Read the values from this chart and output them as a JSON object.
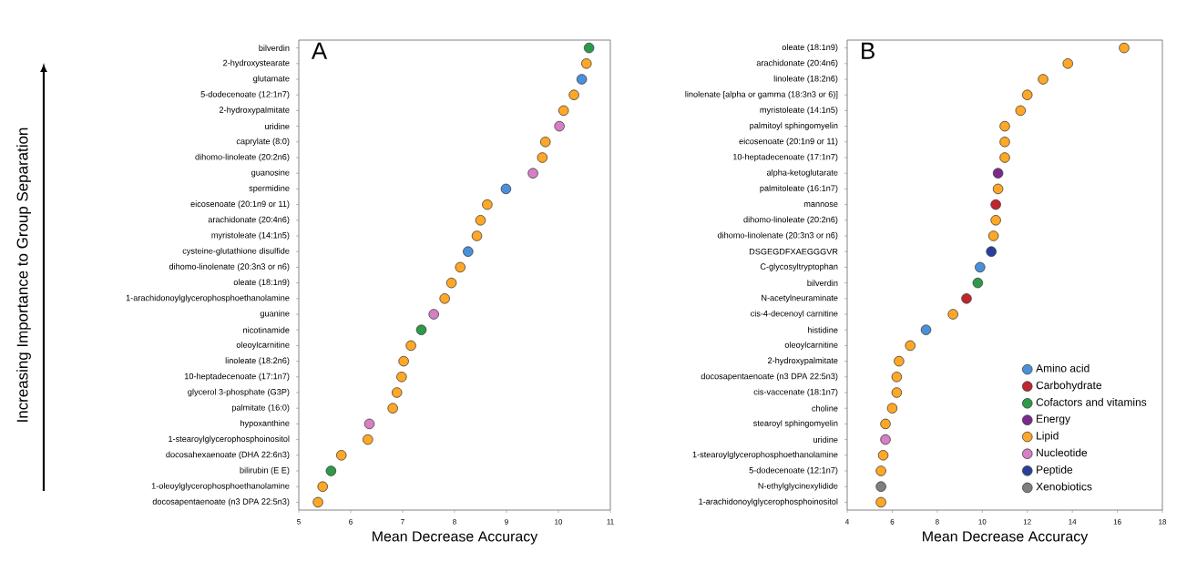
{
  "chart_data": [
    {
      "type": "scatter",
      "orientation": "horizontal",
      "title": "A",
      "xlabel": "Mean Decrease Accuracy",
      "ylabel": "Increasing Importance to Group Separation",
      "marker": "circle",
      "categories": [
        "bilverdin",
        "2-hydroxystearate",
        "glutamate",
        "5-dodecenoate (12:1n7)",
        "2-hydroxypalmitate",
        "uridine",
        "caprylate (8:0)",
        "dihomo-linoleate (20:2n6)",
        "guanosine",
        "spermidine",
        "eicosenoate (20:1n9 or 11)",
        "arachidonate (20:4n6)",
        "myristoleate (14:1n5)",
        "cysteine-glutathione disulfide",
        "dihomo-linolenate (20:3n3 or n6)",
        "oleate (18:1n9)",
        "1-arachidonoylglycerophosphoethanolamine",
        "guanine",
        "nicotinamide",
        "oleoylcarnitine",
        "linoleate (18:2n6)",
        "10-heptadecenoate (17:1n7)",
        "glycerol 3-phosphate (G3P)",
        "palmitate (16:0)",
        "hypoxanthine",
        "1-stearoylglycerophosphoinositol",
        "docosahexaenoate (DHA 22:6n3)",
        "bilirubin (E E)",
        "1-oleoylglycerophosphoethanolamine",
        "docosapentaenoate (n3 DPA 22:5n3)"
      ],
      "values": [
        10.59,
        10.54,
        10.45,
        10.3,
        10.1,
        10.02,
        9.75,
        9.69,
        9.51,
        8.99,
        8.63,
        8.5,
        8.43,
        8.26,
        8.11,
        7.94,
        7.81,
        7.6,
        7.36,
        7.16,
        7.02,
        6.98,
        6.89,
        6.81,
        6.36,
        6.33,
        5.82,
        5.62,
        5.46,
        5.37
      ],
      "colors": [
        "#2e9a48",
        "#ffa726",
        "#4a90d9",
        "#ffa726",
        "#ffa726",
        "#d67fc4",
        "#ffa726",
        "#ffa726",
        "#d67fc4",
        "#4a90d9",
        "#ffa726",
        "#ffa726",
        "#ffa726",
        "#4a90d9",
        "#ffa726",
        "#ffa726",
        "#ffa726",
        "#d67fc4",
        "#2e9a48",
        "#ffa726",
        "#ffa726",
        "#ffa726",
        "#ffa726",
        "#ffa726",
        "#d67fc4",
        "#ffa726",
        "#ffa726",
        "#2e9a48",
        "#ffa726",
        "#ffa726"
      ],
      "xlim": [
        5,
        11
      ],
      "xticks": [
        5,
        6,
        7,
        8,
        9,
        10,
        11
      ]
    },
    {
      "type": "scatter",
      "orientation": "horizontal",
      "title": "B",
      "xlabel": "Mean Decrease Accuracy",
      "marker": "circle",
      "legend": "bottom right",
      "categories": [
        "oleate (18:1n9)",
        "arachidonate (20:4n6)",
        "linoleate (18:2n6)",
        "linolenate [alpha or gamma (18:3n3 or 6)]",
        "myristoleate (14:1n5)",
        "palmitoyl sphingomyelin",
        "eicosenoate (20:1n9 or 11)",
        "10-heptadecenoate (17:1n7)",
        "alpha-ketoglutarate",
        "palmitoleate (16:1n7)",
        "mannose",
        "dihomo-linoleate (20:2n6)",
        "dihomo-linolenate (20:3n3 or n6)",
        "DSGEGDFXAEGGGVR",
        "C-glycosyltryptophan",
        "bilverdin",
        "N-acetylneuraminate",
        "cis-4-decenoyl carnitine",
        "histidine",
        "oleoylcarnitine",
        "2-hydroxypalmitate",
        "docosapentaenoate (n3 DPA 22:5n3)",
        "cis-vaccenate (18:1n7)",
        "choline",
        "stearoyl sphingomyelin",
        "uridine",
        "1-stearoylglycerophosphoethanolamine",
        "5-dodecenoate (12:1n7)",
        "N-ethylglycinexylidide",
        "1-arachidonoylglycerophosphoinositol"
      ],
      "series": [
        {
          "name": "Amino acid",
          "color": "#4a90d9",
          "values": [
            null,
            null,
            null,
            null,
            null,
            null,
            null,
            null,
            null,
            null,
            null,
            null,
            null,
            null,
            9.9,
            null,
            null,
            null,
            7.5,
            null,
            null,
            null,
            null,
            null,
            null,
            null,
            null,
            null,
            null,
            null
          ]
        },
        {
          "name": "Carbohydrate",
          "color": "#c0262d",
          "values": [
            null,
            null,
            null,
            null,
            null,
            null,
            null,
            null,
            null,
            null,
            10.6,
            null,
            null,
            null,
            null,
            null,
            9.3,
            null,
            null,
            null,
            null,
            null,
            null,
            null,
            null,
            null,
            null,
            null,
            null,
            null
          ]
        },
        {
          "name": "Cofactors and vitamins",
          "color": "#2e9a48",
          "values": [
            null,
            null,
            null,
            null,
            null,
            null,
            null,
            null,
            null,
            null,
            null,
            null,
            null,
            null,
            null,
            9.8,
            null,
            null,
            null,
            null,
            null,
            null,
            null,
            null,
            null,
            null,
            null,
            null,
            null,
            null
          ]
        },
        {
          "name": "Energy",
          "color": "#7b2a8c",
          "values": [
            null,
            null,
            null,
            null,
            null,
            null,
            null,
            null,
            10.7,
            null,
            null,
            null,
            null,
            null,
            null,
            null,
            null,
            null,
            null,
            null,
            null,
            null,
            null,
            null,
            null,
            null,
            null,
            null,
            null,
            null
          ]
        },
        {
          "name": "Lipid",
          "color": "#ffa726",
          "values": [
            16.3,
            13.8,
            12.7,
            12.0,
            11.7,
            11.0,
            11.0,
            11.0,
            null,
            10.7,
            null,
            10.6,
            10.5,
            null,
            null,
            null,
            null,
            8.7,
            null,
            6.8,
            6.3,
            6.2,
            6.2,
            6.0,
            5.7,
            null,
            5.6,
            5.5,
            null,
            5.5
          ]
        },
        {
          "name": "Nucleotide",
          "color": "#d67fc4",
          "values": [
            null,
            null,
            null,
            null,
            null,
            null,
            null,
            null,
            null,
            null,
            null,
            null,
            null,
            null,
            null,
            null,
            null,
            null,
            null,
            null,
            null,
            null,
            null,
            null,
            null,
            5.7,
            null,
            null,
            null,
            null
          ]
        },
        {
          "name": "Peptide",
          "color": "#27409c",
          "values": [
            null,
            null,
            null,
            null,
            null,
            null,
            null,
            null,
            null,
            null,
            null,
            null,
            null,
            10.4,
            null,
            null,
            null,
            null,
            null,
            null,
            null,
            null,
            null,
            null,
            null,
            null,
            null,
            null,
            null,
            null
          ]
        },
        {
          "name": "Xenobiotics",
          "color": "#7f7f7f",
          "values": [
            null,
            null,
            null,
            null,
            null,
            null,
            null,
            null,
            null,
            null,
            null,
            null,
            null,
            null,
            null,
            null,
            null,
            null,
            null,
            null,
            null,
            null,
            null,
            null,
            null,
            null,
            null,
            null,
            5.5,
            null
          ]
        }
      ],
      "xlim": [
        4,
        18
      ],
      "xticks": [
        4,
        6,
        8,
        10,
        12,
        14,
        16,
        18
      ]
    }
  ]
}
